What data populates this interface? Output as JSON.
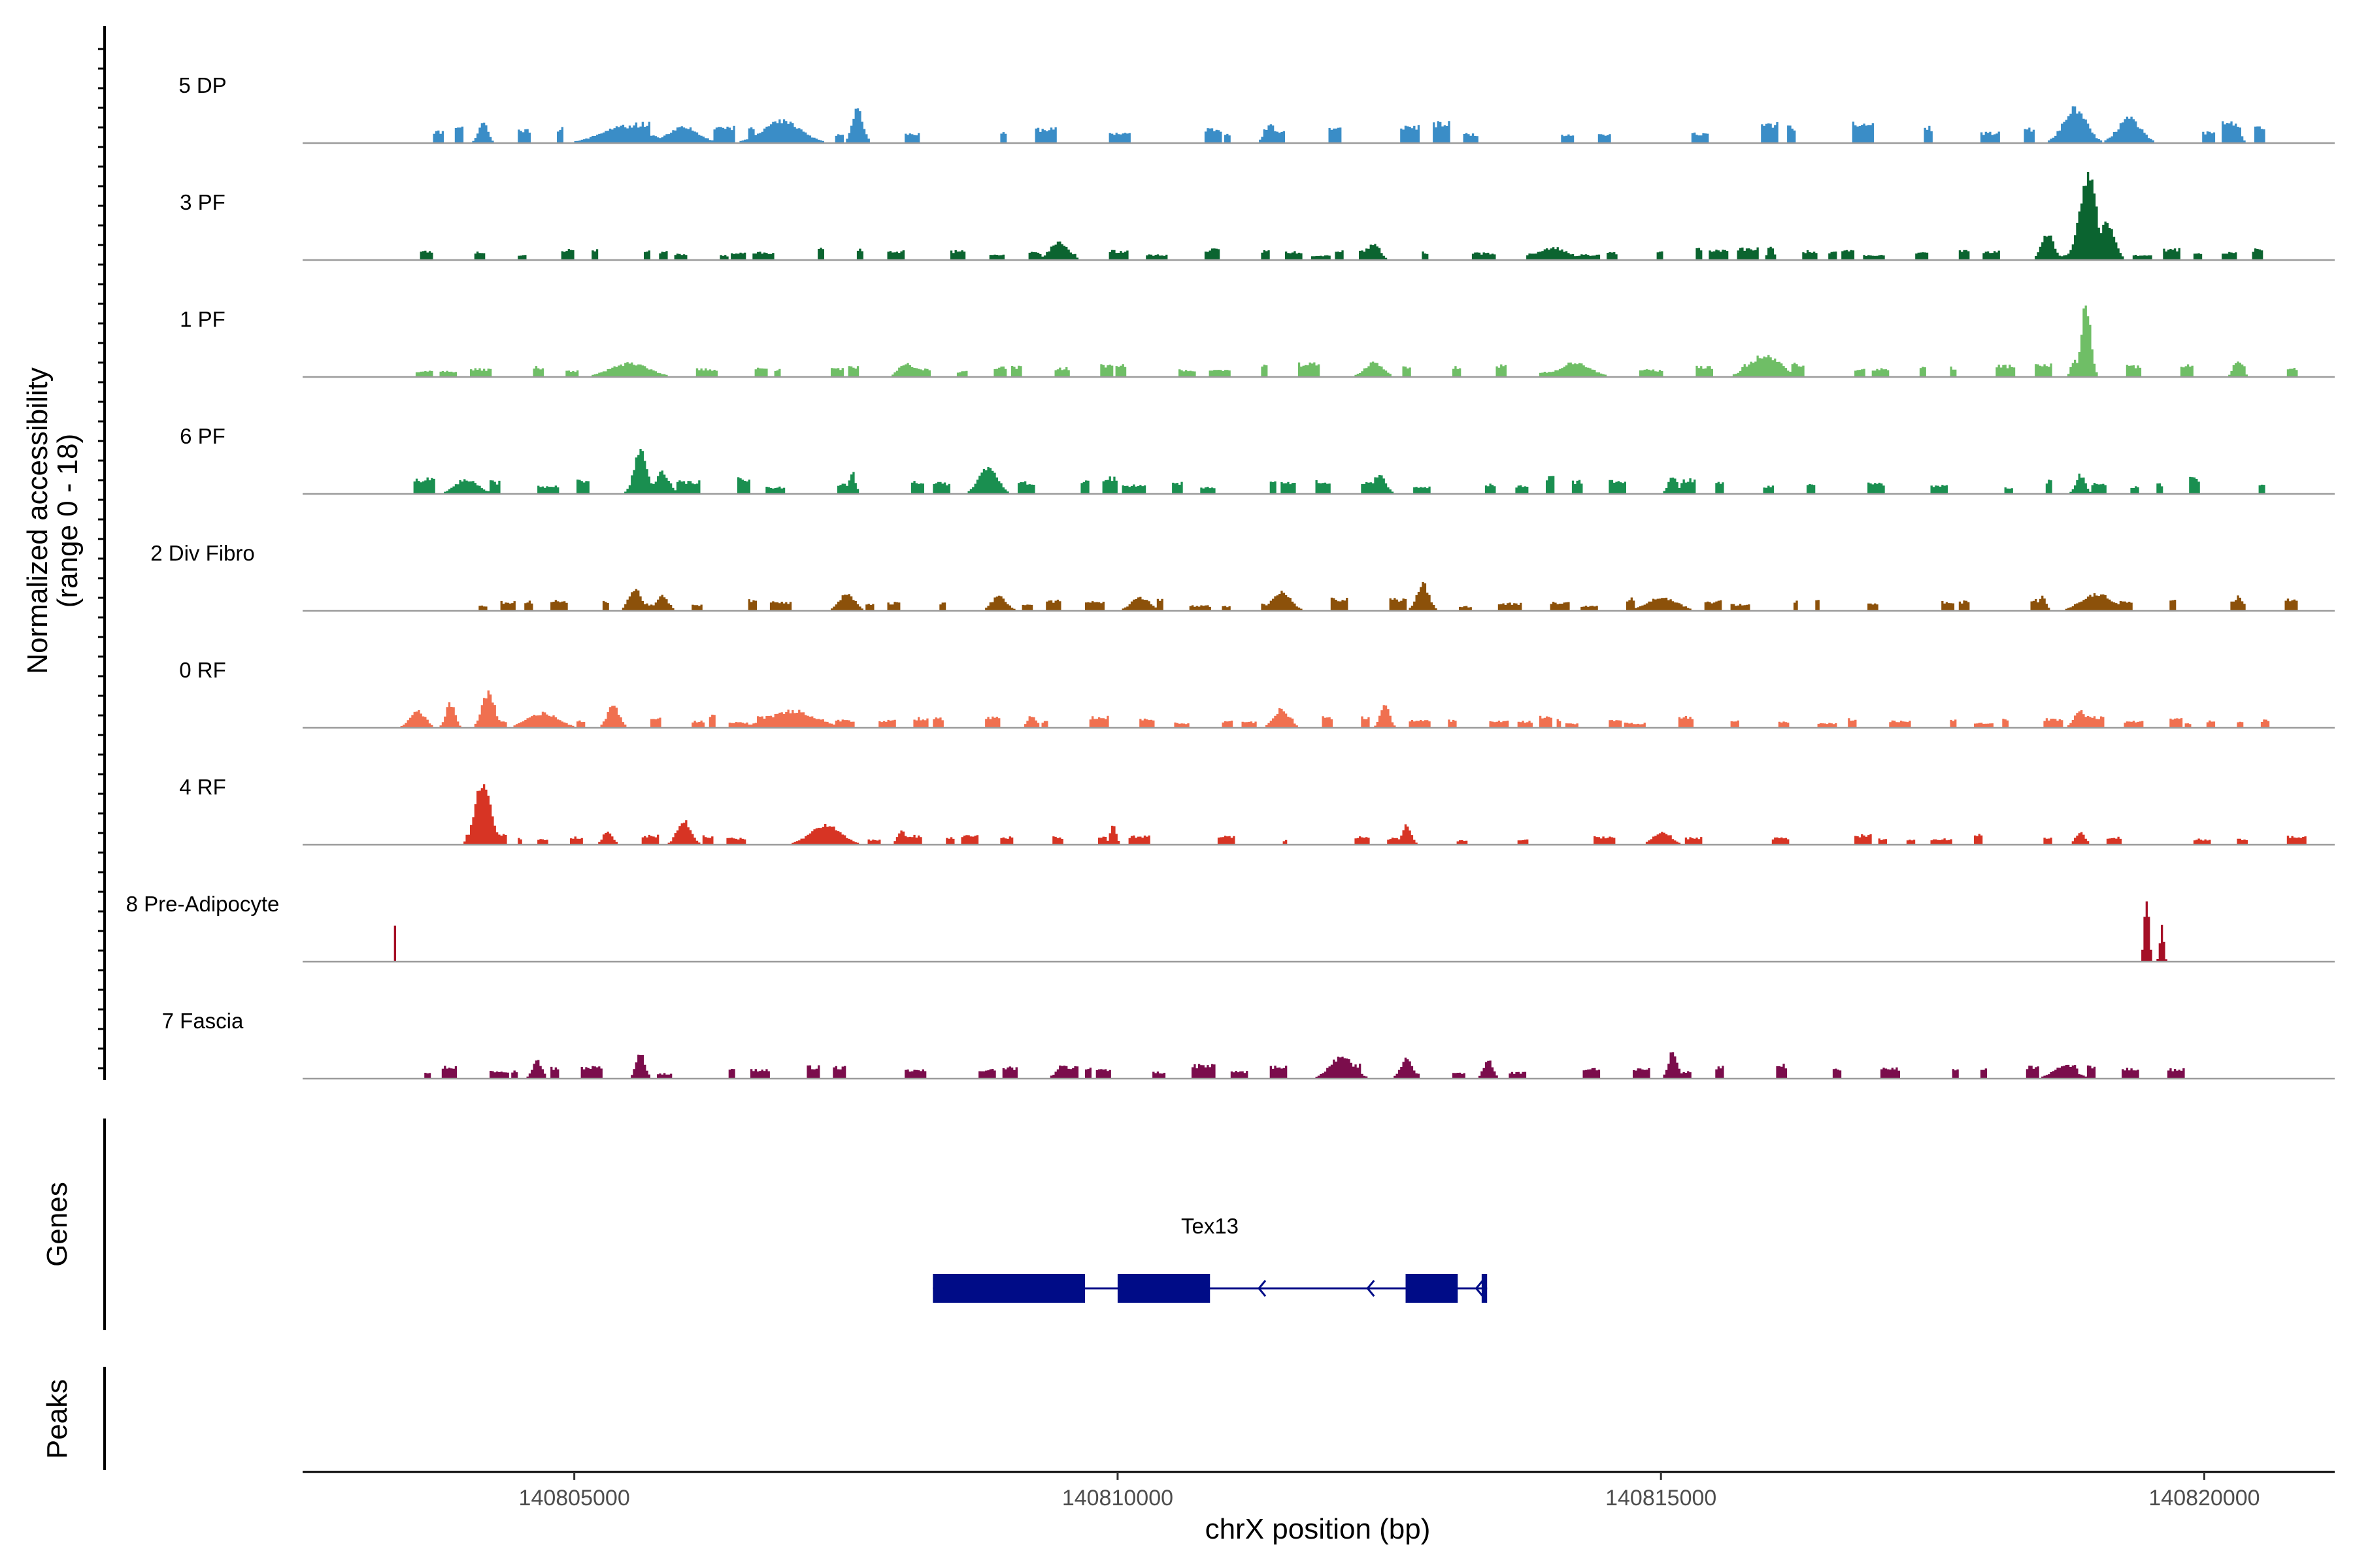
{
  "chart_data": {
    "type": "area",
    "title": "",
    "xlabel": "chrX position (bp)",
    "ylabel": "Normalized accessibility\n(range 0 - 18)",
    "ylabel_lines": [
      "Normalized accessibility",
      "(range 0 - 18)"
    ],
    "ylim": [
      0,
      18
    ],
    "xlim": [
      140802500,
      140821200
    ],
    "x_ticks": [
      140805000,
      140810000,
      140815000,
      140820000
    ],
    "x_tick_labels": [
      "140805000",
      "140810000",
      "140815000",
      "140820000"
    ],
    "genes_panel_label": "Genes",
    "peaks_panel_label": "Peaks",
    "series": [
      {
        "name": "5 DP",
        "color": "#3a8dc7",
        "seed": 11,
        "coverage_from": 140803500,
        "coverage_to": 140820400,
        "density": 0.35,
        "baseline_level": 3,
        "peaks": [
          [
            140804150,
            60,
            4.5
          ],
          [
            140805450,
            300,
            3.5
          ],
          [
            140806000,
            200,
            3.2
          ],
          [
            140806900,
            250,
            4.5
          ],
          [
            140807600,
            70,
            7.0
          ],
          [
            140811400,
            80,
            3.5
          ],
          [
            140818800,
            150,
            7.0
          ],
          [
            140819300,
            150,
            5.0
          ],
          [
            140820300,
            50,
            2.5
          ]
        ]
      },
      {
        "name": "3 PF",
        "color": "#0b6430",
        "seed": 23,
        "coverage_from": 140803450,
        "coverage_to": 140820400,
        "density": 0.62,
        "baseline_level": 1.8,
        "peaks": [
          [
            140809450,
            120,
            3.5
          ],
          [
            140812350,
            80,
            3.5
          ],
          [
            140814000,
            200,
            2.5
          ],
          [
            140816000,
            40,
            3.0
          ],
          [
            140818550,
            80,
            5.5
          ],
          [
            140818920,
            110,
            17.5
          ],
          [
            140819100,
            90,
            8.0
          ]
        ]
      },
      {
        "name": "1 PF",
        "color": "#6fbe66",
        "seed": 37,
        "coverage_from": 140803400,
        "coverage_to": 140820400,
        "density": 0.55,
        "baseline_level": 2.0,
        "peaks": [
          [
            140805500,
            250,
            2.8
          ],
          [
            140808050,
            100,
            3.0
          ],
          [
            140812350,
            120,
            3.0
          ],
          [
            140814200,
            200,
            3.0
          ],
          [
            140815950,
            200,
            4.5
          ],
          [
            140818900,
            60,
            15.5
          ],
          [
            140818790,
            40,
            3.5
          ],
          [
            140820300,
            60,
            3.0
          ]
        ]
      },
      {
        "name": "6 PF",
        "color": "#1a8f50",
        "seed": 41,
        "coverage_from": 140803350,
        "coverage_to": 140820400,
        "density": 0.5,
        "baseline_level": 2.4,
        "peaks": [
          [
            140804000,
            150,
            3.0
          ],
          [
            140805600,
            80,
            9.5
          ],
          [
            140805800,
            90,
            4.5
          ],
          [
            140807550,
            40,
            4.5
          ],
          [
            140808800,
            120,
            5.5
          ],
          [
            140812400,
            80,
            4.0
          ],
          [
            140815100,
            60,
            3.5
          ],
          [
            140818850,
            60,
            4.0
          ]
        ]
      },
      {
        "name": "2 Div Fibro",
        "color": "#8c510a",
        "seed": 53,
        "coverage_from": 140803950,
        "coverage_to": 140820400,
        "density": 0.45,
        "baseline_level": 1.8,
        "peaks": [
          [
            140805550,
            80,
            4.5
          ],
          [
            140805800,
            80,
            3.0
          ],
          [
            140807500,
            100,
            3.5
          ],
          [
            140808900,
            100,
            3.0
          ],
          [
            140810200,
            120,
            2.8
          ],
          [
            140811500,
            120,
            4.0
          ],
          [
            140812800,
            80,
            5.5
          ],
          [
            140815000,
            200,
            2.8
          ],
          [
            140818500,
            50,
            3.0
          ],
          [
            140819000,
            200,
            3.5
          ],
          [
            140820300,
            50,
            3.0
          ]
        ]
      },
      {
        "name": "0 RF",
        "color": "#f07050",
        "seed": 67,
        "coverage_from": 140803400,
        "coverage_to": 140820400,
        "density": 0.7,
        "baseline_level": 1.8,
        "peaks": [
          [
            140803550,
            100,
            3.5
          ],
          [
            140803850,
            60,
            5.0
          ],
          [
            140804200,
            80,
            7.5
          ],
          [
            140804700,
            200,
            3.0
          ],
          [
            140805350,
            80,
            4.5
          ],
          [
            140807000,
            300,
            3.5
          ],
          [
            140809200,
            60,
            2.5
          ],
          [
            140811500,
            100,
            3.8
          ],
          [
            140812450,
            60,
            4.5
          ],
          [
            140818850,
            80,
            3.5
          ]
        ]
      },
      {
        "name": "4 RF",
        "color": "#d73424",
        "seed": 79,
        "coverage_from": 140803800,
        "coverage_to": 140820400,
        "density": 0.4,
        "baseline_level": 1.6,
        "peaks": [
          [
            140804150,
            100,
            13.0
          ],
          [
            140805300,
            60,
            3.0
          ],
          [
            140806000,
            90,
            5.0
          ],
          [
            140807300,
            200,
            4.0
          ],
          [
            140808000,
            50,
            3.0
          ],
          [
            140809950,
            40,
            4.0
          ],
          [
            140812650,
            60,
            4.0
          ],
          [
            140815000,
            120,
            2.5
          ],
          [
            140818850,
            60,
            2.8
          ]
        ]
      },
      {
        "name": "8 Pre-Adipocyte",
        "color": "#a50f26",
        "seed": 83,
        "coverage_from": 140803300,
        "coverage_to": 140803300,
        "density": 0.0,
        "baseline_level": 0,
        "peaks": [
          [
            140803340,
            5,
            7.0
          ],
          [
            140819460,
            30,
            14.0
          ],
          [
            140819600,
            25,
            7.0
          ]
        ]
      },
      {
        "name": "7 Fascia",
        "color": "#7b0d4c",
        "seed": 97,
        "coverage_from": 140803450,
        "coverage_to": 140819500,
        "density": 0.5,
        "baseline_level": 2.0,
        "peaks": [
          [
            140804650,
            60,
            3.8
          ],
          [
            140805600,
            60,
            5.0
          ],
          [
            140809500,
            100,
            2.5
          ],
          [
            140812050,
            150,
            4.5
          ],
          [
            140812650,
            80,
            4.0
          ],
          [
            140813400,
            60,
            3.8
          ],
          [
            140815100,
            60,
            5.5
          ],
          [
            140818700,
            150,
            2.5
          ]
        ]
      }
    ],
    "gene": {
      "name": "Tex13",
      "strand": "-",
      "start": 140808300,
      "end": 140813400,
      "exons": [
        [
          140808300,
          140809700
        ],
        [
          140810000,
          140810850
        ],
        [
          140812650,
          140813130
        ],
        [
          140813350,
          140813400
        ]
      ],
      "arrows": [
        140811300,
        140812300,
        140813300
      ]
    },
    "colors": {
      "baseline": "#9b9b9b",
      "axis": "#000000",
      "gene": "#000c87"
    }
  }
}
